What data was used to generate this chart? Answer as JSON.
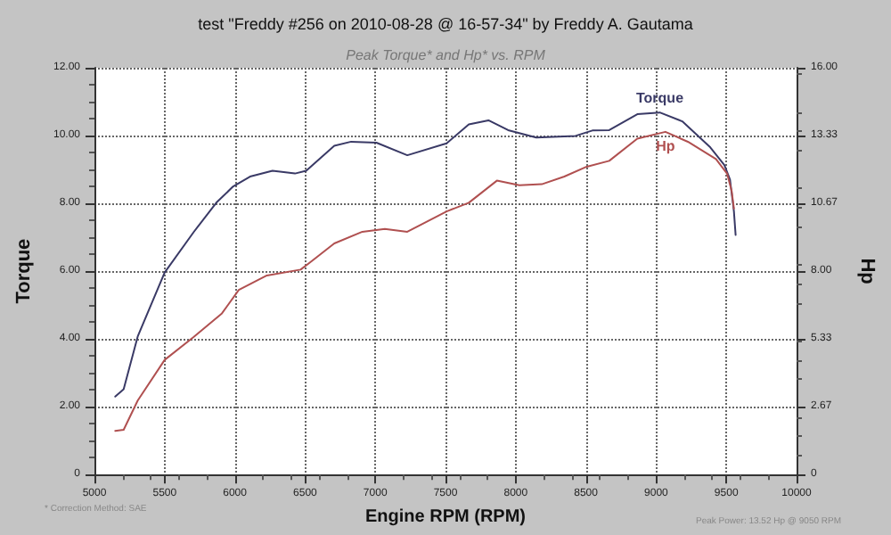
{
  "chart_data": {
    "type": "line",
    "title": "test \"Freddy #256 on 2010-08-28 @ 16-57-34\" by Freddy A. Gautama",
    "subtitle": "Peak Torque* and Hp* vs. RPM",
    "xlabel": "Engine RPM (RPM)",
    "ylabel": "Torque",
    "y2label": "Hp",
    "series": [
      {
        "name": "Torque",
        "color": "#3a3a66",
        "x": [
          5148,
          5208,
          5308,
          5500,
          5708,
          5868,
          5988,
          6108,
          6268,
          6428,
          6508,
          6708,
          6828,
          7008,
          7228,
          7508,
          7666,
          7806,
          7946,
          8146,
          8426,
          8546,
          8666,
          8866,
          9026,
          9186,
          9386,
          9486,
          9526,
          9554,
          9566
        ],
        "values": [
          2.3,
          2.52,
          4.07,
          5.96,
          7.16,
          8.02,
          8.5,
          8.79,
          8.96,
          8.88,
          8.96,
          9.7,
          9.82,
          9.79,
          9.42,
          9.77,
          10.33,
          10.45,
          10.16,
          9.94,
          9.99,
          10.15,
          10.16,
          10.63,
          10.68,
          10.42,
          9.65,
          9.13,
          8.7,
          7.76,
          7.07
        ]
      },
      {
        "name": "Hp",
        "color": "#b05050",
        "axis": "y2",
        "x": [
          5148,
          5208,
          5308,
          5500,
          5708,
          5908,
          6028,
          6228,
          6468,
          6548,
          6708,
          6908,
          7068,
          7228,
          7508,
          7666,
          7866,
          8026,
          8186,
          8346,
          8506,
          8666,
          8866,
          9066,
          9226,
          9426,
          9506,
          9538,
          9554
        ],
        "values": [
          1.72,
          1.76,
          2.91,
          4.51,
          5.42,
          6.34,
          7.26,
          7.83,
          8.06,
          8.4,
          9.09,
          9.55,
          9.66,
          9.55,
          10.35,
          10.69,
          11.56,
          11.38,
          11.42,
          11.72,
          12.11,
          12.34,
          13.21,
          13.48,
          13.09,
          12.41,
          11.83,
          11.15,
          10.46
        ]
      }
    ],
    "xlim": [
      5000,
      10000
    ],
    "xticks": [
      5000,
      5500,
      6000,
      6500,
      7000,
      7500,
      8000,
      8500,
      9000,
      9500,
      10000
    ],
    "ylim": [
      0,
      12
    ],
    "yticks": [
      0,
      {
        "value": 2,
        "label": "2.00"
      },
      {
        "value": 4,
        "label": "4.00"
      },
      {
        "value": 6,
        "label": "6.00"
      },
      {
        "value": 8,
        "label": "8.00"
      },
      {
        "value": 10,
        "label": "10.00"
      },
      {
        "value": 12,
        "label": "12.00"
      }
    ],
    "y2lim": [
      0,
      16
    ],
    "y2ticks": [
      0,
      {
        "value": 2.67,
        "label": "2.67"
      },
      {
        "value": 5.33,
        "label": "5.33"
      },
      {
        "value": 8,
        "label": "8.00"
      },
      {
        "value": 10.67,
        "label": "10.67"
      },
      {
        "value": 13.33,
        "label": "13.33"
      },
      {
        "value": 16,
        "label": "16.00"
      }
    ],
    "grid": true,
    "marker": "none",
    "line_style": "solid",
    "annotations": [
      "* Correction Method: SAE",
      "Peak Power: 13.52 Hp @ 9050 RPM"
    ]
  }
}
